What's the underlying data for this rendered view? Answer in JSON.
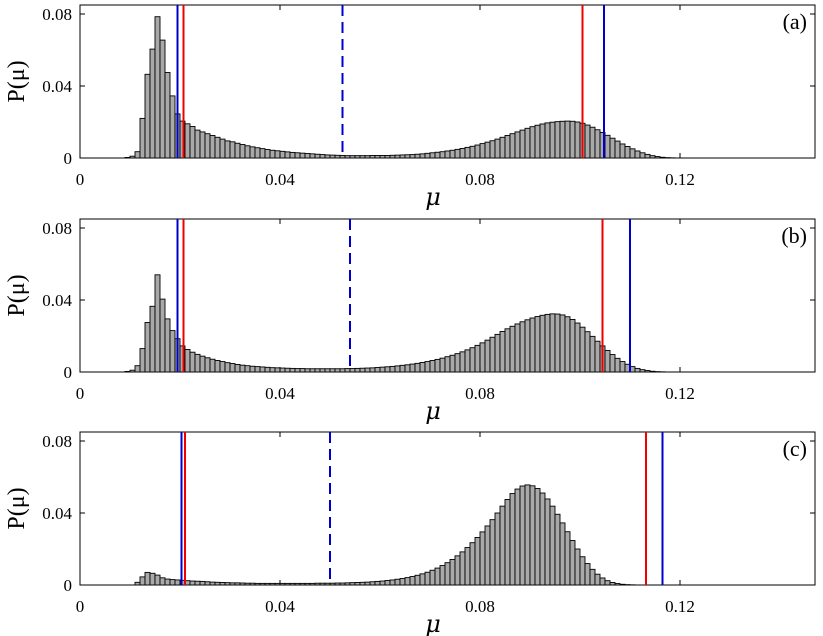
{
  "chart_data": [
    {
      "type": "bar",
      "panel_label": "(a)",
      "ylabel": "P(μ)",
      "xlabel": "μ",
      "xlim": [
        0,
        0.147
      ],
      "ylim": [
        0,
        0.085
      ],
      "xticks": [
        0,
        0.04,
        0.08,
        0.12
      ],
      "xtick_labels": [
        "0",
        "0.04",
        "0.08",
        "0.12"
      ],
      "yticks": [
        0,
        0.04,
        0.08
      ],
      "ytick_labels": [
        "0",
        "0.04",
        "0.08"
      ],
      "bin_width": 0.001,
      "bins_start": 0.009,
      "values": [
        0.0003,
        0.001,
        0.0035,
        0.022,
        0.0465,
        0.0605,
        0.0785,
        0.0655,
        0.0475,
        0.0345,
        0.0245,
        0.0205,
        0.019,
        0.0175,
        0.0155,
        0.0145,
        0.0135,
        0.0125,
        0.0115,
        0.0105,
        0.0095,
        0.009,
        0.0082,
        0.0075,
        0.0068,
        0.0062,
        0.0057,
        0.0052,
        0.0047,
        0.0043,
        0.004,
        0.0037,
        0.0034,
        0.0031,
        0.0029,
        0.0027,
        0.0025,
        0.0023,
        0.0021,
        0.0019,
        0.0017,
        0.0016,
        0.0015,
        0.0014,
        0.0013,
        0.0013,
        0.0013,
        0.0013,
        0.0013,
        0.0014,
        0.0014,
        0.0014,
        0.0014,
        0.0015,
        0.0016,
        0.0017,
        0.0018,
        0.0019,
        0.0021,
        0.0023,
        0.0026,
        0.0029,
        0.0032,
        0.0035,
        0.0039,
        0.0043,
        0.0048,
        0.0053,
        0.0059,
        0.0065,
        0.0072,
        0.008,
        0.0088,
        0.0096,
        0.0105,
        0.0115,
        0.0125,
        0.0135,
        0.0145,
        0.0155,
        0.0165,
        0.0174,
        0.0182,
        0.0189,
        0.0195,
        0.0199,
        0.0202,
        0.0204,
        0.0205,
        0.0204,
        0.02,
        0.0193,
        0.0183,
        0.0171,
        0.0157,
        0.0142,
        0.0126,
        0.011,
        0.0094,
        0.0078,
        0.0064,
        0.0051,
        0.0039,
        0.0029,
        0.002,
        0.0013,
        0.0008,
        0.0004,
        0.0002,
        0.0001
      ],
      "vlines": [
        {
          "x": 0.0195,
          "color": "#0000cc",
          "style": "solid"
        },
        {
          "x": 0.0207,
          "color": "#ee0000",
          "style": "solid"
        },
        {
          "x": 0.0525,
          "color": "#0000cc",
          "style": "dashed"
        },
        {
          "x": 0.1005,
          "color": "#ee0000",
          "style": "solid"
        },
        {
          "x": 0.1048,
          "color": "#0000cc",
          "style": "solid"
        }
      ]
    },
    {
      "type": "bar",
      "panel_label": "(b)",
      "ylabel": "P(μ)",
      "xlabel": "μ",
      "xlim": [
        0,
        0.147
      ],
      "ylim": [
        0,
        0.085
      ],
      "xticks": [
        0,
        0.04,
        0.08,
        0.12
      ],
      "xtick_labels": [
        "0",
        "0.04",
        "0.08",
        "0.12"
      ],
      "yticks": [
        0,
        0.04,
        0.08
      ],
      "ytick_labels": [
        "0",
        "0.04",
        "0.08"
      ],
      "bin_width": 0.001,
      "bins_start": 0.009,
      "values": [
        0.0003,
        0.001,
        0.0035,
        0.013,
        0.0275,
        0.0365,
        0.054,
        0.0405,
        0.0295,
        0.023,
        0.0185,
        0.0145,
        0.0125,
        0.011,
        0.0098,
        0.0088,
        0.0079,
        0.0071,
        0.0064,
        0.0058,
        0.0052,
        0.0047,
        0.0042,
        0.0038,
        0.0035,
        0.0032,
        0.003,
        0.0028,
        0.0026,
        0.0024,
        0.0023,
        0.0022,
        0.0021,
        0.002,
        0.0019,
        0.0019,
        0.0018,
        0.0018,
        0.0018,
        0.0018,
        0.0018,
        0.0018,
        0.0018,
        0.0018,
        0.0019,
        0.0019,
        0.002,
        0.0021,
        0.0022,
        0.0023,
        0.0025,
        0.0027,
        0.0029,
        0.0031,
        0.0034,
        0.0037,
        0.004,
        0.0044,
        0.0048,
        0.0053,
        0.0058,
        0.0064,
        0.007,
        0.0077,
        0.0085,
        0.0093,
        0.0102,
        0.0112,
        0.0123,
        0.0135,
        0.0148,
        0.0162,
        0.0177,
        0.0193,
        0.0209,
        0.0225,
        0.024,
        0.0254,
        0.0267,
        0.0279,
        0.029,
        0.03,
        0.0308,
        0.0315,
        0.032,
        0.0323,
        0.0322,
        0.0317,
        0.0307,
        0.0292,
        0.0272,
        0.0249,
        0.0224,
        0.0198,
        0.0171,
        0.0145,
        0.012,
        0.0097,
        0.0076,
        0.0058,
        0.0043,
        0.003,
        0.002,
        0.0013,
        0.0008,
        0.0004,
        0.0002,
        0.0001
      ],
      "vlines": [
        {
          "x": 0.0195,
          "color": "#0000cc",
          "style": "solid"
        },
        {
          "x": 0.0207,
          "color": "#ee0000",
          "style": "solid"
        },
        {
          "x": 0.054,
          "color": "#0000cc",
          "style": "dashed"
        },
        {
          "x": 0.1045,
          "color": "#ee0000",
          "style": "solid"
        },
        {
          "x": 0.11,
          "color": "#0000cc",
          "style": "solid"
        }
      ]
    },
    {
      "type": "bar",
      "panel_label": "(c)",
      "ylabel": "P(μ)",
      "xlabel": "μ",
      "xlim": [
        0,
        0.147
      ],
      "ylim": [
        0,
        0.085
      ],
      "xticks": [
        0,
        0.04,
        0.08,
        0.12
      ],
      "xtick_labels": [
        "0",
        "0.04",
        "0.08",
        "0.12"
      ],
      "yticks": [
        0,
        0.04,
        0.08
      ],
      "ytick_labels": [
        "0",
        "0.04",
        "0.08"
      ],
      "bin_width": 0.001,
      "bins_start": 0.011,
      "values": [
        0.0015,
        0.0045,
        0.007,
        0.0065,
        0.0055,
        0.004,
        0.0033,
        0.003,
        0.0028,
        0.0026,
        0.0024,
        0.0022,
        0.0021,
        0.002,
        0.0018,
        0.0016,
        0.0015,
        0.0014,
        0.0013,
        0.0012,
        0.0012,
        0.0011,
        0.001,
        0.001,
        0.0009,
        0.0009,
        0.0009,
        0.0009,
        0.0009,
        0.0009,
        0.0009,
        0.0009,
        0.0009,
        0.0009,
        0.0009,
        0.0009,
        0.001,
        0.001,
        0.001,
        0.001,
        0.0011,
        0.0011,
        0.0012,
        0.0013,
        0.0014,
        0.0015,
        0.0016,
        0.0018,
        0.002,
        0.0022,
        0.0025,
        0.0028,
        0.0032,
        0.0036,
        0.0041,
        0.0047,
        0.0054,
        0.0062,
        0.0071,
        0.0082,
        0.0094,
        0.0108,
        0.0124,
        0.0142,
        0.0162,
        0.0184,
        0.0208,
        0.0235,
        0.0264,
        0.0295,
        0.0328,
        0.0363,
        0.04,
        0.0438,
        0.0475,
        0.0508,
        0.0533,
        0.055,
        0.0556,
        0.0551,
        0.0536,
        0.0511,
        0.0478,
        0.0438,
        0.0393,
        0.0345,
        0.0296,
        0.0247,
        0.02,
        0.0157,
        0.0119,
        0.0087,
        0.006,
        0.0039,
        0.0024,
        0.0014,
        0.0008,
        0.0004,
        0.0002,
        0.0001
      ],
      "vlines": [
        {
          "x": 0.0203,
          "color": "#0000cc",
          "style": "solid"
        },
        {
          "x": 0.021,
          "color": "#ee0000",
          "style": "solid"
        },
        {
          "x": 0.05,
          "color": "#0000cc",
          "style": "dashed"
        },
        {
          "x": 0.1132,
          "color": "#ee0000",
          "style": "solid"
        },
        {
          "x": 0.1165,
          "color": "#0000cc",
          "style": "solid"
        }
      ]
    }
  ]
}
